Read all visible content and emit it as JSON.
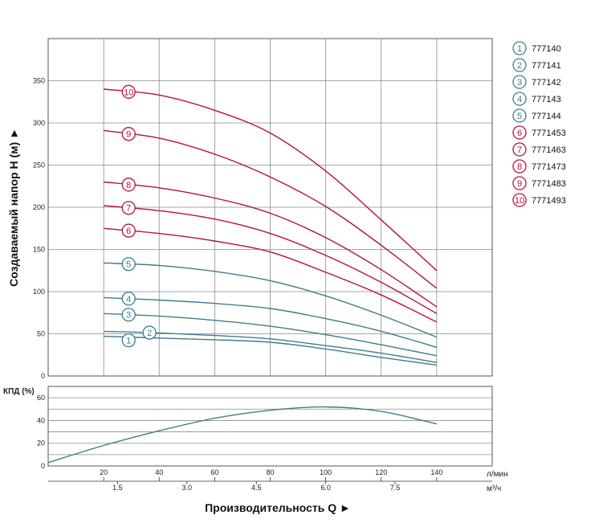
{
  "colors": {
    "teal": "#3f7c8c",
    "red": "#b5123b",
    "grid": "#8a8a8a"
  },
  "chart_data": [
    {
      "type": "line",
      "xlim": [
        0,
        160
      ],
      "ylim": [
        0,
        400
      ],
      "x_ticks": [
        "20",
        "40",
        "60",
        "80",
        "100",
        "120",
        "140"
      ],
      "y_ticks": [
        "0",
        "50",
        "100",
        "150",
        "200",
        "250",
        "300",
        "350"
      ],
      "ylabel": "Создаваемый напор H (м) ►",
      "series": [
        {
          "name": "777140",
          "label": "1",
          "group": "teal",
          "points": [
            [
              20,
              47
            ],
            [
              40,
              45
            ],
            [
              60,
              43
            ],
            [
              80,
              40
            ],
            [
              100,
              32
            ],
            [
              120,
              22
            ],
            [
              140,
              13
            ]
          ]
        },
        {
          "name": "777141",
          "label": "2",
          "group": "teal",
          "points": [
            [
              20,
              53
            ],
            [
              40,
              51
            ],
            [
              60,
              48
            ],
            [
              80,
              44
            ],
            [
              100,
              36
            ],
            [
              120,
              27
            ],
            [
              140,
              16
            ]
          ]
        },
        {
          "name": "777142",
          "label": "3",
          "group": "teal",
          "points": [
            [
              20,
              74
            ],
            [
              40,
              71
            ],
            [
              60,
              66
            ],
            [
              80,
              59
            ],
            [
              100,
              49
            ],
            [
              120,
              37
            ],
            [
              140,
              24
            ]
          ]
        },
        {
          "name": "777143",
          "label": "4",
          "group": "teal",
          "points": [
            [
              20,
              93
            ],
            [
              40,
              90
            ],
            [
              60,
              86
            ],
            [
              80,
              80
            ],
            [
              100,
              68
            ],
            [
              120,
              53
            ],
            [
              140,
              34
            ]
          ]
        },
        {
          "name": "777144",
          "label": "5",
          "group": "teal",
          "points": [
            [
              20,
              134
            ],
            [
              40,
              131
            ],
            [
              60,
              124
            ],
            [
              80,
              113
            ],
            [
              100,
              95
            ],
            [
              120,
              72
            ],
            [
              140,
              46
            ]
          ]
        },
        {
          "name": "7771453",
          "label": "6",
          "group": "red",
          "points": [
            [
              20,
              175
            ],
            [
              40,
              169
            ],
            [
              60,
              160
            ],
            [
              80,
              147
            ],
            [
              100,
              123
            ],
            [
              120,
              96
            ],
            [
              140,
              64
            ]
          ]
        },
        {
          "name": "7771463",
          "label": "7",
          "group": "red",
          "points": [
            [
              20,
              202
            ],
            [
              40,
              196
            ],
            [
              60,
              186
            ],
            [
              80,
              169
            ],
            [
              100,
              143
            ],
            [
              120,
              111
            ],
            [
              140,
              74
            ]
          ]
        },
        {
          "name": "7771473",
          "label": "8",
          "group": "red",
          "points": [
            [
              20,
              230
            ],
            [
              40,
              223
            ],
            [
              60,
              211
            ],
            [
              80,
              193
            ],
            [
              100,
              164
            ],
            [
              120,
              126
            ],
            [
              140,
              82
            ]
          ]
        },
        {
          "name": "7771483",
          "label": "9",
          "group": "red",
          "points": [
            [
              20,
              291
            ],
            [
              40,
              282
            ],
            [
              60,
              263
            ],
            [
              80,
              236
            ],
            [
              100,
              201
            ],
            [
              120,
              155
            ],
            [
              140,
              104
            ]
          ]
        },
        {
          "name": "7771493",
          "label": "10",
          "group": "red",
          "points": [
            [
              20,
              340
            ],
            [
              40,
              333
            ],
            [
              60,
              315
            ],
            [
              80,
              288
            ],
            [
              100,
              243
            ],
            [
              120,
              185
            ],
            [
              140,
              125
            ]
          ]
        }
      ],
      "legend_position": "right"
    },
    {
      "type": "line",
      "xlim": [
        0,
        160
      ],
      "ylim": [
        0,
        70
      ],
      "ylabel": "КПД (%)",
      "y_ticks": [
        "0",
        "20",
        "40",
        "60"
      ],
      "x_ticks": [
        "20",
        "40",
        "60",
        "80",
        "100",
        "120",
        "140"
      ],
      "x_unit": "л/мин",
      "x2_ticks": [
        "1.5",
        "3.0",
        "4.5",
        "6.0",
        "7.5"
      ],
      "x2_unit": "м³/ч",
      "xlabel": "Производительность Q ►",
      "series": [
        {
          "points": [
            [
              0,
              3
            ],
            [
              20,
              18
            ],
            [
              40,
              31
            ],
            [
              60,
              42
            ],
            [
              80,
              49
            ],
            [
              100,
              52
            ],
            [
              120,
              48
            ],
            [
              140,
              37
            ]
          ]
        }
      ]
    }
  ]
}
